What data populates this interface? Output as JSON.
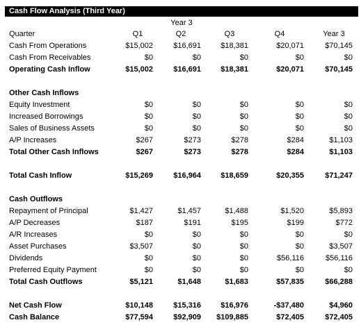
{
  "title": "Cash Flow Analysis (Third Year)",
  "year_header": "Year 3",
  "header": {
    "label": "Quarter",
    "cols": [
      "Q1",
      "Q2",
      "Q3",
      "Q4",
      "Year 3"
    ]
  },
  "rows": {
    "ops": {
      "label": "Cash From Operations",
      "values": [
        "$15,002",
        "$16,691",
        "$18,381",
        "$20,071",
        "$70,145"
      ]
    },
    "recv": {
      "label": "Cash From Receivables",
      "values": [
        "$0",
        "$0",
        "$0",
        "$0",
        "$0"
      ]
    },
    "op_inflow": {
      "label": "Operating Cash Inflow",
      "values": [
        "$15,002",
        "$16,691",
        "$18,381",
        "$20,071",
        "$70,145"
      ]
    },
    "other_hdr": {
      "label": "Other Cash Inflows"
    },
    "equity": {
      "label": "Equity Investment",
      "values": [
        "$0",
        "$0",
        "$0",
        "$0",
        "$0"
      ]
    },
    "borrow": {
      "label": "Increased Borrowings",
      "values": [
        "$0",
        "$0",
        "$0",
        "$0",
        "$0"
      ]
    },
    "assets_sale": {
      "label": "Sales of Business Assets",
      "values": [
        "$0",
        "$0",
        "$0",
        "$0",
        "$0"
      ]
    },
    "ap_inc": {
      "label": "A/P Increases",
      "values": [
        "$267",
        "$273",
        "$278",
        "$284",
        "$1,103"
      ]
    },
    "total_other": {
      "label": "Total Other Cash Inflows",
      "values": [
        "$267",
        "$273",
        "$278",
        "$284",
        "$1,103"
      ]
    },
    "total_inflow": {
      "label": "Total Cash Inflow",
      "values": [
        "$15,269",
        "$16,964",
        "$18,659",
        "$20,355",
        "$71,247"
      ]
    },
    "out_hdr": {
      "label": "Cash Outflows"
    },
    "principal": {
      "label": "Repayment of Principal",
      "values": [
        "$1,427",
        "$1,457",
        "$1,488",
        "$1,520",
        "$5,893"
      ]
    },
    "ap_dec": {
      "label": "A/P Decreases",
      "values": [
        "$187",
        "$191",
        "$195",
        "$199",
        "$772"
      ]
    },
    "ar_inc": {
      "label": "A/R Increases",
      "values": [
        "$0",
        "$0",
        "$0",
        "$0",
        "$0"
      ]
    },
    "asset_purch": {
      "label": "Asset Purchases",
      "values": [
        "$3,507",
        "$0",
        "$0",
        "$0",
        "$3,507"
      ]
    },
    "dividends": {
      "label": "Dividends",
      "values": [
        "$0",
        "$0",
        "$0",
        "$56,116",
        "$56,116"
      ]
    },
    "pref_equity": {
      "label": "Preferred Equity Payment",
      "values": [
        "$0",
        "$0",
        "$0",
        "$0",
        "$0"
      ]
    },
    "total_out": {
      "label": "Total Cash Outflows",
      "values": [
        "$5,121",
        "$1,648",
        "$1,683",
        "$57,835",
        "$66,288"
      ]
    },
    "net": {
      "label": "Net Cash Flow",
      "values": [
        "$10,148",
        "$15,316",
        "$16,976",
        "-$37,480",
        "$4,960"
      ]
    },
    "balance": {
      "label": "Cash Balance",
      "values": [
        "$77,594",
        "$92,909",
        "$109,885",
        "$72,405",
        "$72,405"
      ]
    }
  }
}
